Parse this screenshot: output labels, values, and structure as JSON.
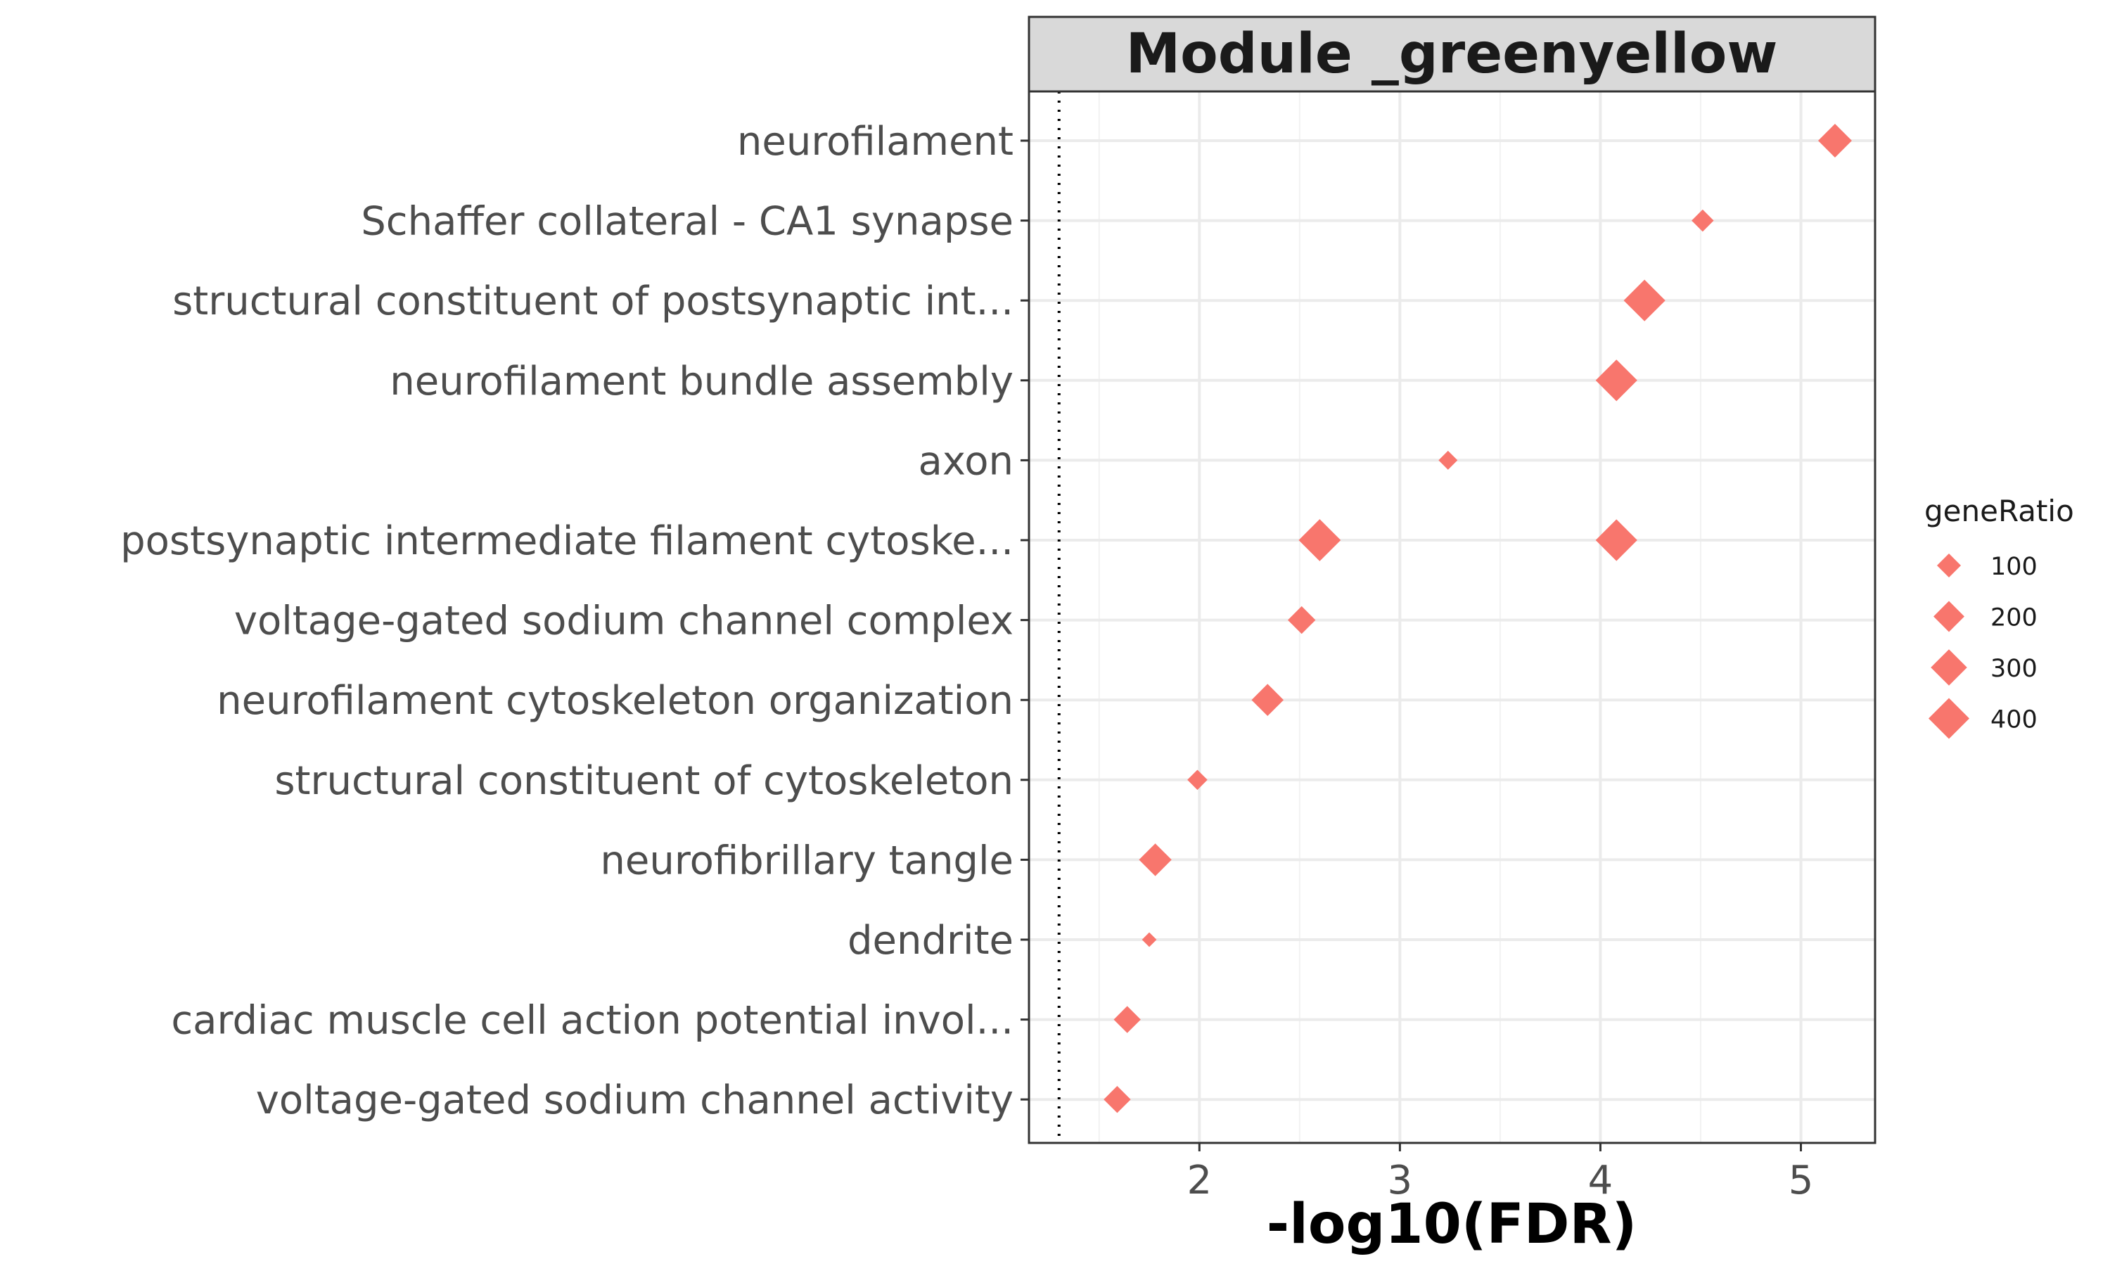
{
  "chart_data": {
    "type": "scatter",
    "title": "Module _greenyellow",
    "xlabel": "-log10(FDR)",
    "ylabel": "",
    "xlim": [
      1.15,
      5.37
    ],
    "x_ticks": [
      2,
      3,
      4,
      5
    ],
    "x_tick_labels": [
      "2",
      "3",
      "4",
      "5"
    ],
    "threshold_line": 1.3,
    "grid": true,
    "marker": "diamond",
    "point_color": "#F8766D",
    "categories": [
      "neurofilament",
      "Schaffer collateral - CA1 synapse",
      "structural constituent of postsynaptic int...",
      "neurofilament bundle assembly",
      "axon",
      "postsynaptic intermediate filament cytoske...",
      "voltage-gated sodium channel complex",
      "neurofilament cytoskeleton organization",
      "structural constituent of cytoskeleton",
      "neurofibrillary tangle",
      "dendrite",
      "cardiac muscle cell action potential invol...",
      "voltage-gated sodium channel activity"
    ],
    "points": [
      {
        "category": "neurofilament",
        "x": 5.17,
        "geneRatio": 250
      },
      {
        "category": "Schaffer collateral - CA1 synapse",
        "x": 4.51,
        "geneRatio": 80
      },
      {
        "category": "structural constituent of postsynaptic int...",
        "x": 4.22,
        "geneRatio": 420
      },
      {
        "category": "neurofilament bundle assembly",
        "x": 4.08,
        "geneRatio": 420
      },
      {
        "category": "axon",
        "x": 3.24,
        "geneRatio": 50
      },
      {
        "category": "postsynaptic intermediate filament cytoske...",
        "x": 2.6,
        "geneRatio": 430
      },
      {
        "category": "postsynaptic intermediate filament cytoske...",
        "x": 4.08,
        "geneRatio": 420
      },
      {
        "category": "voltage-gated sodium channel complex",
        "x": 2.51,
        "geneRatio": 150
      },
      {
        "category": "neurofilament cytoskeleton organization",
        "x": 2.34,
        "geneRatio": 220
      },
      {
        "category": "structural constituent of cytoskeleton",
        "x": 1.99,
        "geneRatio": 60
      },
      {
        "category": "neurofibrillary tangle",
        "x": 1.78,
        "geneRatio": 230
      },
      {
        "category": "dendrite",
        "x": 1.75,
        "geneRatio": 20
      },
      {
        "category": "cardiac muscle cell action potential invol...",
        "x": 1.64,
        "geneRatio": 140
      },
      {
        "category": "voltage-gated sodium channel activity",
        "x": 1.59,
        "geneRatio": 140
      }
    ],
    "legend": {
      "title": "geneRatio",
      "placement": "right",
      "entries": [
        {
          "label": "100",
          "value": 100
        },
        {
          "label": "200",
          "value": 200
        },
        {
          "label": "300",
          "value": 300
        },
        {
          "label": "400",
          "value": 400
        }
      ]
    }
  }
}
